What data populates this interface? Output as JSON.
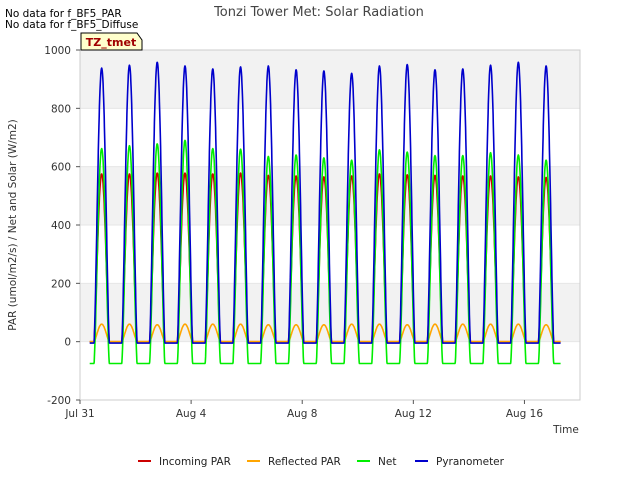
{
  "notices": [
    "No data for f_BF5_PAR",
    "No data for f_BF5_Diffuse"
  ],
  "chart_data": {
    "type": "line",
    "title": "Tonzi Tower Met: Solar Radiation",
    "site_label": "TZ_tmet",
    "xlabel": "Time",
    "ylabel": "PAR (umol/m2/s) / Net and Solar (W/m2)",
    "ylim": [
      -200,
      1000
    ],
    "yticks": [
      -200,
      0,
      200,
      400,
      600,
      800,
      1000
    ],
    "xlim_days": [
      0,
      18
    ],
    "xticks": [
      {
        "day": 0,
        "label": "Jul 31"
      },
      {
        "day": 4,
        "label": "Aug 4"
      },
      {
        "day": 8,
        "label": "Aug 8"
      },
      {
        "day": 12,
        "label": "Aug 12"
      },
      {
        "day": 16,
        "label": "Aug 16"
      }
    ],
    "data_range_days": [
      0.35,
      17.3
    ],
    "day_count": 17,
    "first_day_center": 0.78,
    "daylength": 0.55,
    "series": [
      {
        "name": "Incoming PAR",
        "color": "#cc0000",
        "peaks": [
          575,
          575,
          578,
          578,
          575,
          578,
          570,
          568,
          565,
          568,
          575,
          572,
          570,
          568,
          568,
          565,
          563
        ],
        "night": 0
      },
      {
        "name": "Reflected PAR",
        "color": "#ffa500",
        "peaks": [
          60,
          60,
          58,
          60,
          60,
          60,
          58,
          58,
          58,
          60,
          60,
          58,
          60,
          60,
          60,
          60,
          58
        ],
        "night": 0
      },
      {
        "name": "Net",
        "color": "#00ee00",
        "peaks": [
          662,
          672,
          678,
          690,
          662,
          660,
          635,
          640,
          630,
          622,
          658,
          650,
          638,
          638,
          648,
          640,
          622
        ],
        "night": -75
      },
      {
        "name": "Pyranometer",
        "color": "#0000cc",
        "peaks": [
          938,
          948,
          958,
          945,
          935,
          942,
          945,
          932,
          928,
          920,
          945,
          950,
          932,
          935,
          948,
          958,
          945
        ],
        "night": -5
      }
    ]
  }
}
